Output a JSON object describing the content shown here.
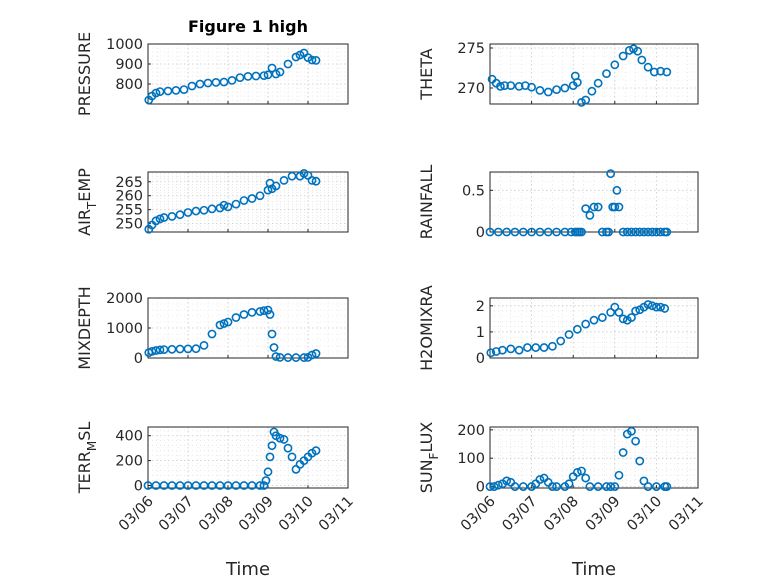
{
  "figure": {
    "title": "Figure 1 high"
  },
  "colors": {
    "series": "#0072bd",
    "axis": "#262626",
    "grid": "#c8c8c8"
  },
  "x_axis": {
    "label": "Time",
    "ticks": [
      "03/06",
      "03/07",
      "03/08",
      "03/09",
      "03/10",
      "03/11"
    ]
  },
  "chart_data": [
    {
      "id": "pressure",
      "type": "scatter",
      "title": "Figure 1 high",
      "ylabel": "PRESSURE",
      "ylim": [
        700,
        1000
      ],
      "yticks": [
        800,
        900,
        1000
      ],
      "grid": true,
      "x": [
        0.02,
        0.1,
        0.2,
        0.3,
        0.5,
        0.7,
        0.9,
        1.1,
        1.3,
        1.5,
        1.7,
        1.9,
        2.1,
        2.3,
        2.5,
        2.7,
        2.9,
        3.0,
        3.1,
        3.2,
        3.3,
        3.5,
        3.7,
        3.8,
        3.9,
        4.0,
        4.1,
        4.2
      ],
      "y": [
        720,
        740,
        755,
        762,
        765,
        768,
        772,
        790,
        800,
        805,
        808,
        810,
        818,
        832,
        838,
        840,
        842,
        846,
        880,
        850,
        860,
        900,
        935,
        945,
        955,
        932,
        920,
        918
      ]
    },
    {
      "id": "theta",
      "type": "scatter",
      "ylabel": "THETA",
      "ylim": [
        268,
        275.5
      ],
      "yticks": [
        270,
        275
      ],
      "grid": true,
      "x": [
        0.05,
        0.15,
        0.25,
        0.35,
        0.5,
        0.7,
        0.85,
        1.0,
        1.2,
        1.4,
        1.6,
        1.8,
        2.0,
        2.05,
        2.1,
        2.2,
        2.3,
        2.45,
        2.6,
        2.8,
        3.0,
        3.2,
        3.35,
        3.45,
        3.55,
        3.65,
        3.8,
        3.95,
        4.1,
        4.25
      ],
      "y": [
        271.1,
        270.6,
        270.2,
        270.3,
        270.3,
        270.2,
        270.3,
        270.1,
        269.7,
        269.5,
        269.8,
        270.0,
        270.3,
        271.5,
        270.7,
        268.2,
        268.5,
        269.6,
        270.6,
        271.8,
        272.9,
        274.0,
        274.7,
        274.9,
        274.6,
        273.5,
        272.6,
        272.0,
        272.1,
        272.0
      ]
    },
    {
      "id": "air_temp",
      "type": "scatter",
      "ylabel": "AIR_TEMP",
      "ylabel_main": "AIR",
      "ylabel_sub": "T",
      "ylabel_rest": "EMP",
      "ylim": [
        247,
        268.5
      ],
      "yticks": [
        250,
        255,
        260,
        265
      ],
      "grid": true,
      "x": [
        0.02,
        0.1,
        0.2,
        0.3,
        0.4,
        0.6,
        0.8,
        1.0,
        1.2,
        1.4,
        1.6,
        1.8,
        1.9,
        2.0,
        2.2,
        2.4,
        2.6,
        2.8,
        3.0,
        3.05,
        3.1,
        3.2,
        3.4,
        3.6,
        3.8,
        3.9,
        4.0,
        4.1,
        4.2
      ],
      "y": [
        248,
        249.5,
        251,
        251.7,
        252.2,
        252.6,
        253.2,
        254,
        254.5,
        254.8,
        255.3,
        255.6,
        256.6,
        256,
        257,
        258.3,
        259,
        260,
        262,
        264.5,
        262.5,
        263.5,
        265.5,
        267,
        267,
        268,
        267.3,
        265.5,
        265.2
      ]
    },
    {
      "id": "rainfall",
      "type": "scatter",
      "ylabel": "RAINFALL",
      "ylim": [
        0,
        0.72
      ],
      "yticks": [
        0,
        0.5
      ],
      "grid": true,
      "x": [
        0.0,
        0.2,
        0.4,
        0.6,
        0.8,
        1.0,
        1.2,
        1.4,
        1.6,
        1.8,
        1.95,
        2.05,
        2.1,
        2.15,
        2.2,
        2.3,
        2.4,
        2.5,
        2.6,
        2.7,
        2.8,
        2.85,
        2.9,
        2.95,
        3.0,
        3.05,
        3.1,
        3.2,
        3.3,
        3.4,
        3.5,
        3.6,
        3.7,
        3.8,
        3.9,
        4.0,
        4.1,
        4.2,
        4.25
      ],
      "y": [
        0,
        0,
        0,
        0,
        0,
        0,
        0,
        0,
        0,
        0,
        0,
        0,
        0,
        0,
        0,
        0.28,
        0.2,
        0.3,
        0.3,
        0,
        0,
        0,
        0.7,
        0.3,
        0.3,
        0.5,
        0.3,
        0,
        0,
        0,
        0,
        0,
        0,
        0,
        0,
        0,
        0,
        0,
        0
      ]
    },
    {
      "id": "mixdepth",
      "type": "scatter",
      "ylabel": "MIXDEPTH",
      "ylim": [
        0,
        2000
      ],
      "yticks": [
        0,
        1000,
        2000
      ],
      "grid": true,
      "x": [
        0.02,
        0.1,
        0.2,
        0.3,
        0.4,
        0.6,
        0.8,
        1.0,
        1.2,
        1.4,
        1.6,
        1.8,
        1.9,
        2.0,
        2.2,
        2.4,
        2.6,
        2.8,
        2.9,
        3.0,
        3.05,
        3.1,
        3.15,
        3.2,
        3.3,
        3.5,
        3.7,
        3.9,
        4.0,
        4.1,
        4.2
      ],
      "y": [
        180,
        220,
        250,
        270,
        280,
        290,
        300,
        305,
        310,
        420,
        800,
        1100,
        1150,
        1200,
        1350,
        1450,
        1520,
        1550,
        1580,
        1600,
        1450,
        800,
        350,
        50,
        20,
        15,
        15,
        15,
        20,
        100,
        150
      ]
    },
    {
      "id": "h2omixra",
      "type": "scatter",
      "ylabel": "H2OMIXRA",
      "ylim": [
        0,
        2.3
      ],
      "yticks": [
        0,
        1,
        2
      ],
      "grid": true,
      "x": [
        0.02,
        0.15,
        0.3,
        0.5,
        0.7,
        0.9,
        1.1,
        1.3,
        1.5,
        1.7,
        1.9,
        2.1,
        2.3,
        2.5,
        2.7,
        2.9,
        3.0,
        3.1,
        3.2,
        3.3,
        3.4,
        3.5,
        3.6,
        3.7,
        3.8,
        3.9,
        4.0,
        4.1,
        4.2
      ],
      "y": [
        0.2,
        0.25,
        0.3,
        0.35,
        0.3,
        0.4,
        0.4,
        0.4,
        0.45,
        0.65,
        0.9,
        1.1,
        1.3,
        1.45,
        1.55,
        1.75,
        1.95,
        1.75,
        1.5,
        1.45,
        1.55,
        1.8,
        1.85,
        1.95,
        2.05,
        2.0,
        1.95,
        1.95,
        1.9
      ]
    },
    {
      "id": "terr_msl",
      "type": "scatter",
      "ylabel": "TERR_MSL",
      "ylabel_main": "TERR",
      "ylabel_sub": "M",
      "ylabel_rest": "SL",
      "ylim": [
        -20,
        470
      ],
      "yticks": [
        0,
        200,
        400
      ],
      "grid": true,
      "x": [
        0.0,
        0.2,
        0.4,
        0.6,
        0.8,
        1.0,
        1.2,
        1.4,
        1.6,
        1.8,
        2.0,
        2.2,
        2.4,
        2.6,
        2.8,
        2.9,
        2.95,
        3.0,
        3.05,
        3.1,
        3.15,
        3.2,
        3.3,
        3.4,
        3.5,
        3.6,
        3.7,
        3.8,
        3.9,
        4.0,
        4.1,
        4.2
      ],
      "y": [
        0,
        0,
        0,
        0,
        0,
        0,
        0,
        0,
        0,
        0,
        0,
        0,
        0,
        0,
        0,
        0,
        40,
        110,
        230,
        320,
        430,
        400,
        380,
        370,
        300,
        230,
        130,
        170,
        200,
        230,
        260,
        280
      ]
    },
    {
      "id": "sun_flux",
      "type": "scatter",
      "ylabel": "SUN_FLUX",
      "ylabel_main": "SUN",
      "ylabel_sub": "F",
      "ylabel_rest": "LUX",
      "ylim": [
        -5,
        210
      ],
      "yticks": [
        0,
        100,
        200
      ],
      "grid": true,
      "x": [
        0.0,
        0.1,
        0.2,
        0.3,
        0.4,
        0.5,
        0.6,
        0.8,
        1.0,
        1.1,
        1.2,
        1.3,
        1.4,
        1.5,
        1.6,
        1.8,
        1.9,
        2.0,
        2.1,
        2.2,
        2.3,
        2.4,
        2.6,
        2.8,
        2.9,
        3.0,
        3.1,
        3.2,
        3.3,
        3.4,
        3.5,
        3.6,
        3.7,
        3.8,
        4.0,
        4.2,
        4.25
      ],
      "y": [
        0,
        0,
        5,
        10,
        20,
        15,
        0,
        0,
        0,
        10,
        25,
        30,
        15,
        0,
        0,
        0,
        10,
        35,
        50,
        55,
        30,
        0,
        0,
        0,
        0,
        0,
        40,
        120,
        185,
        195,
        160,
        90,
        20,
        0,
        0,
        0,
        0
      ]
    }
  ]
}
